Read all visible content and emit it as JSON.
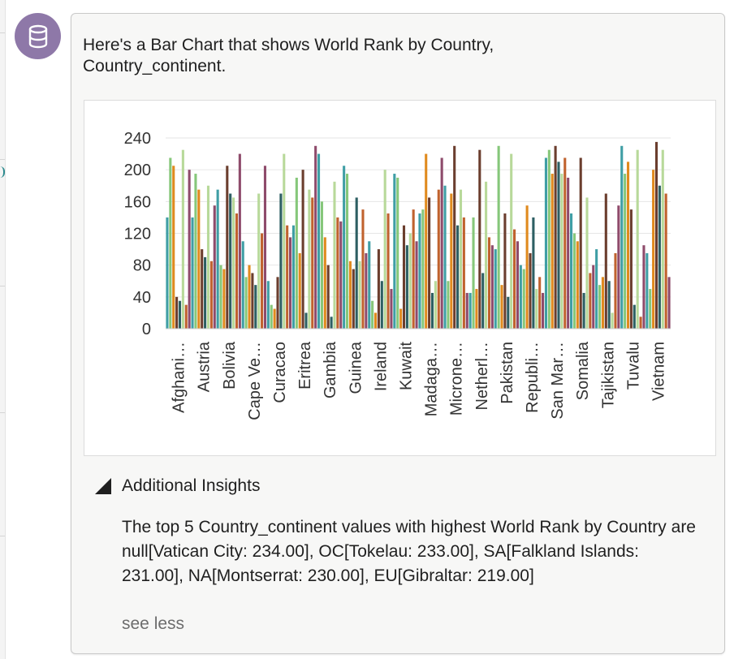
{
  "message": {
    "intro": "Here's a Bar Chart that shows World Rank by Country, Country_continent."
  },
  "insights": {
    "toggle_label": "Additional Insights",
    "text": "The top 5 Country_continent values with highest World Rank by Country are null[Vatican City: 234.00], OC[Tokelau: 233.00], SA[Falkland Islands: 231.00], NA[Montserrat: 230.00], EU[Gibraltar: 219.00]",
    "see_less": "see less"
  },
  "icons": {
    "avatar": "database-icon",
    "toggle": "triangle-expanded-icon"
  },
  "colors": {
    "avatar_bg": "#8e78a8",
    "card_bg": "#f7f7f6"
  },
  "chart_data": {
    "type": "bar",
    "ylim": [
      0,
      240
    ],
    "yticks": [
      0,
      40,
      80,
      120,
      160,
      200,
      240
    ],
    "categories": [
      "Afghani…",
      "Austria",
      "Bolivia",
      "Cape Ve…",
      "Curacao",
      "Eritrea",
      "Gambia",
      "Guinea",
      "Ireland",
      "Kuwait",
      "Madaga…",
      "Microne…",
      "Netherl…",
      "Pakistan",
      "Republi…",
      "San Mar…",
      "Somalia",
      "Tajikistan",
      "Tuvalu",
      "Vietnam"
    ],
    "series_colors": [
      "#3f9ea5",
      "#86c77a",
      "#e08a1e",
      "#6b3e2e",
      "#2d5f63",
      "#b8d99a",
      "#c0622e",
      "#8e4b6b"
    ],
    "values": [
      [
        140,
        215,
        205,
        40,
        35,
        225,
        30,
        200
      ],
      [
        140,
        195,
        175,
        100,
        90,
        180,
        85,
        155
      ],
      [
        175,
        80,
        75,
        205,
        170,
        165,
        145,
        220
      ],
      [
        110,
        65,
        80,
        70,
        55,
        170,
        120,
        205
      ],
      [
        60,
        30,
        25,
        65,
        170,
        220,
        130,
        115
      ],
      [
        130,
        190,
        95,
        200,
        20,
        175,
        165,
        230
      ],
      [
        220,
        160,
        115,
        80,
        15,
        185,
        140,
        135
      ],
      [
        205,
        195,
        85,
        75,
        165,
        85,
        150,
        95
      ],
      [
        110,
        35,
        20,
        100,
        60,
        200,
        145,
        50
      ],
      [
        195,
        190,
        25,
        130,
        105,
        120,
        150,
        110
      ],
      [
        145,
        150,
        220,
        165,
        45,
        60,
        175,
        215
      ],
      [
        180,
        60,
        170,
        230,
        130,
        175,
        140,
        45
      ],
      [
        45,
        140,
        50,
        225,
        70,
        185,
        115,
        105
      ],
      [
        100,
        230,
        55,
        145,
        40,
        220,
        125,
        110
      ],
      [
        80,
        75,
        155,
        95,
        140,
        50,
        65,
        45
      ],
      [
        215,
        225,
        195,
        230,
        210,
        195,
        215,
        190
      ],
      [
        145,
        120,
        110,
        215,
        45,
        165,
        70,
        80
      ],
      [
        100,
        55,
        65,
        170,
        60,
        20,
        95,
        155
      ],
      [
        230,
        195,
        210,
        150,
        30,
        225,
        15,
        105
      ],
      [
        95,
        50,
        200,
        235,
        180,
        225,
        170,
        65
      ]
    ]
  }
}
